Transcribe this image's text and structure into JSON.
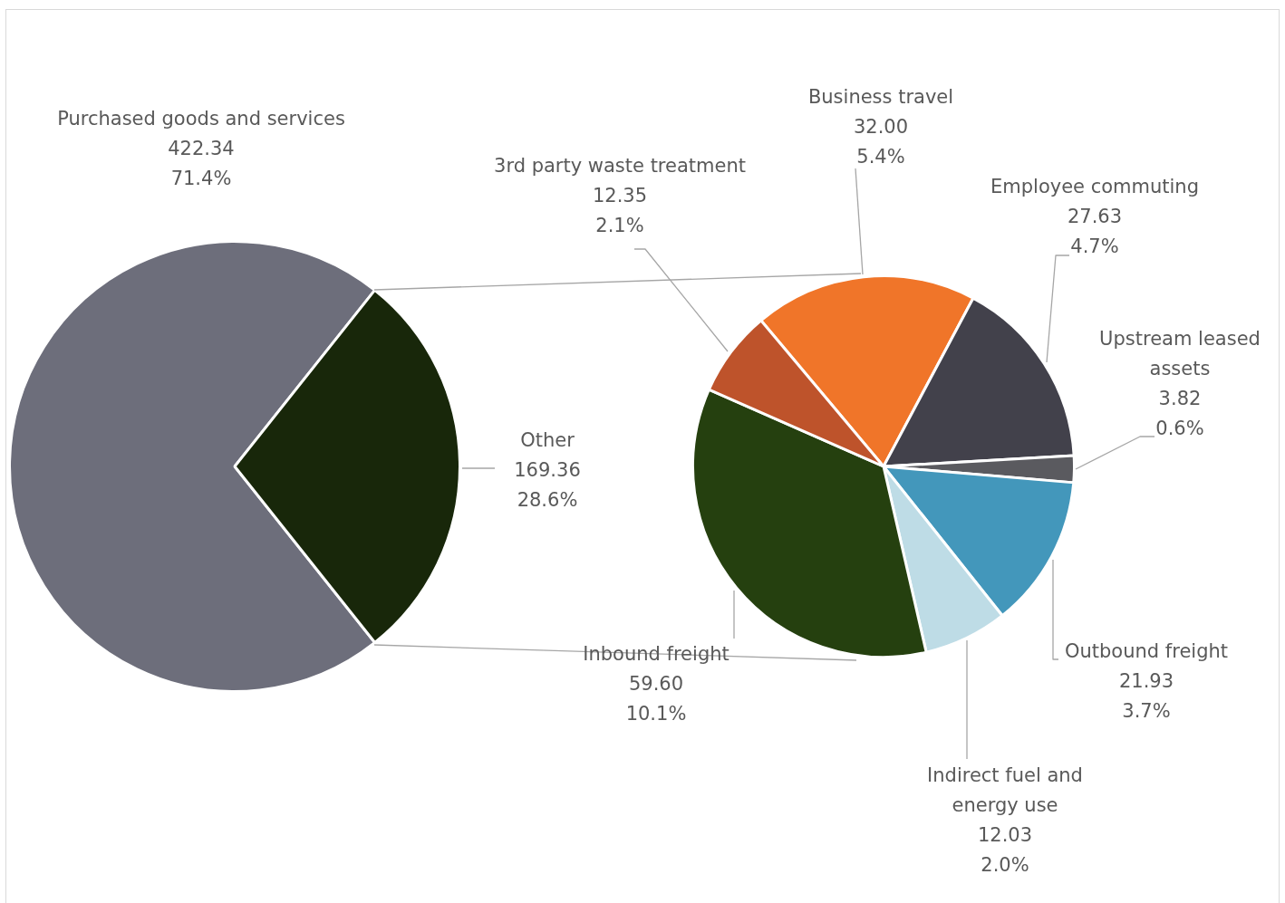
{
  "chart_data": [
    {
      "type": "pie",
      "categories": [
        "Purchased goods and services",
        "Other"
      ],
      "values": [
        422.34,
        169.36
      ],
      "colors": [
        "#6d6e7b",
        "#18270a"
      ],
      "value_labels": [
        "422.34\n71.4%",
        "169.36\n28.6%"
      ],
      "legend": false
    },
    {
      "type": "pie",
      "categories": [
        "Business travel",
        "Employee commuting",
        "Upstream leased assets",
        "Outbound freight",
        "Indirect fuel and energy use",
        "Inbound freight",
        "3rd party waste treatment"
      ],
      "values": [
        32.0,
        27.63,
        3.82,
        21.93,
        12.03,
        59.6,
        12.35
      ],
      "colors": [
        "#f07529",
        "#42414b",
        "#5a5a5f",
        "#4397bb",
        "#bedce6",
        "#25400f",
        "#be532b"
      ],
      "value_labels": [
        "32.00\n5.4%",
        "27.63\n4.7%",
        "3.82\n0.6%",
        "21.93\n3.7%",
        "12.03\n2.0%",
        "59.60\n10.1%",
        "12.35\n2.1%"
      ],
      "legend": false
    }
  ]
}
